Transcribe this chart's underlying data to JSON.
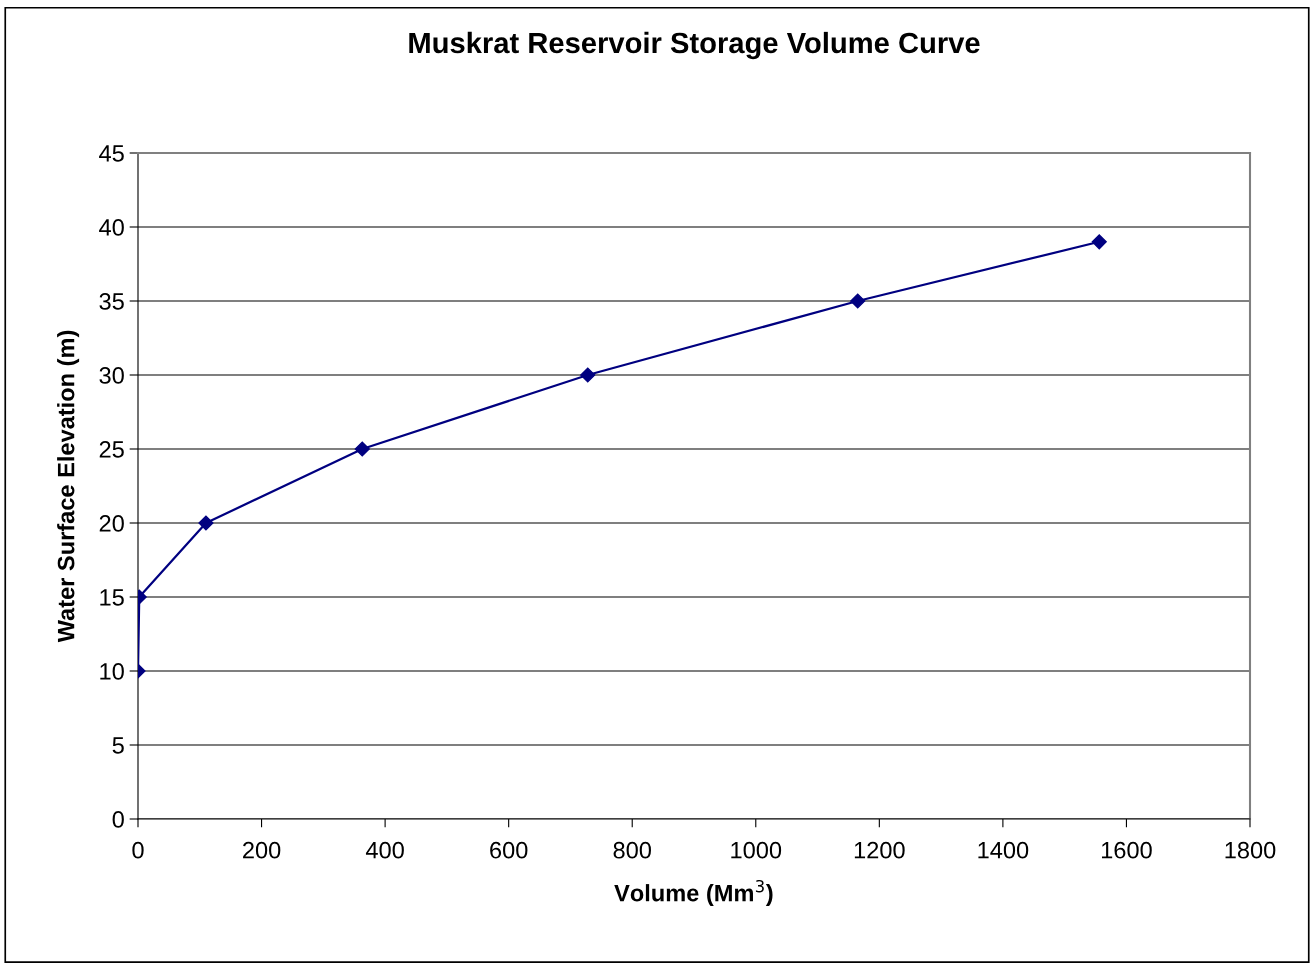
{
  "chart_data": {
    "type": "line",
    "title": "Muskrat Reservoir Storage Volume Curve",
    "xlabel": "Volume (Mm$^{3}$)",
    "ylabel": "Water Surface Elevation (m)",
    "series": [
      {
        "color": "#000080",
        "x": [
          0,
          2,
          110,
          363,
          728,
          1165,
          1556
        ],
        "values": [
          10,
          15,
          20,
          25,
          30,
          35,
          39
        ]
      }
    ],
    "xlim": [
      0,
      1800
    ],
    "xticks": [
      0,
      200,
      400,
      600,
      800,
      1000,
      1200,
      1400,
      1600,
      1800
    ],
    "ylim": [
      0,
      45
    ],
    "yticks": [
      0,
      5,
      10,
      15,
      20,
      25,
      30,
      35,
      40,
      45
    ],
    "grid": "y",
    "marker": "diamond",
    "line_style": "solid",
    "legend": false
  }
}
